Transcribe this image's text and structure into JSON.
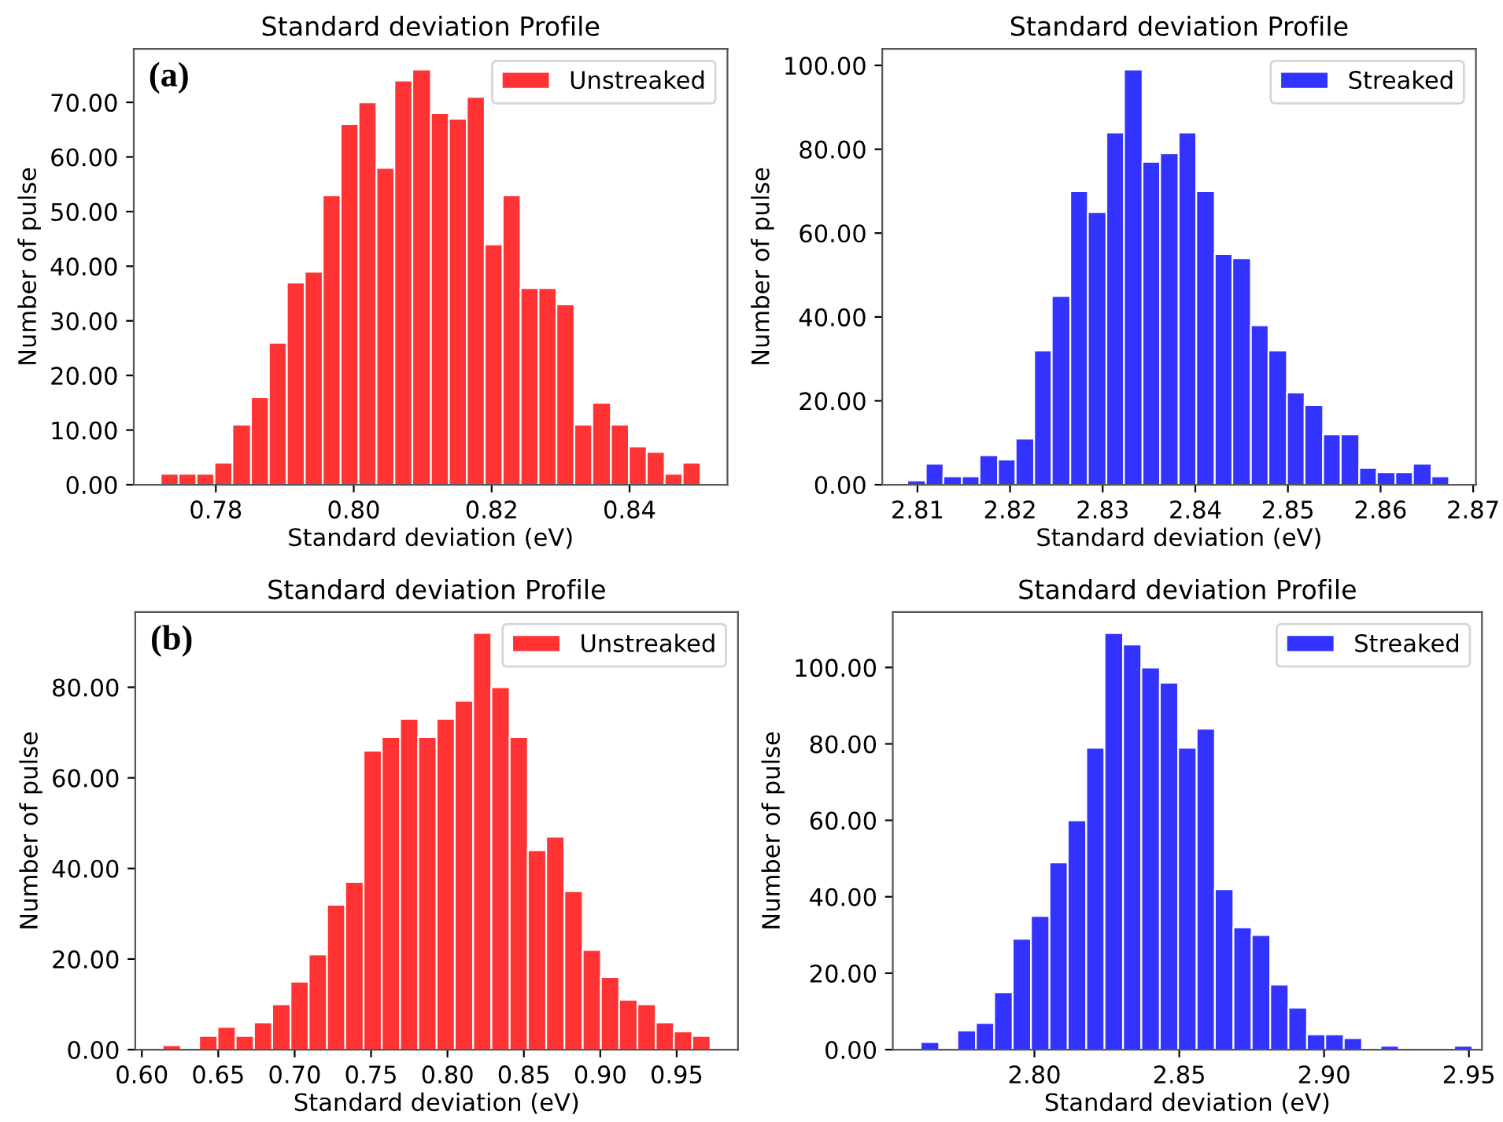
{
  "chart_data": [
    {
      "type": "histogram",
      "title": "Standard deviation Profile",
      "xlabel": "Standard deviation (eV)",
      "ylabel": "Number of pulse",
      "annotations": [
        "(a)"
      ],
      "legend": "top right",
      "bins": [
        0.772,
        0.7746,
        0.7772,
        0.7798,
        0.7824,
        0.7851,
        0.7877,
        0.7903,
        0.7929,
        0.7955,
        0.7981,
        0.8007,
        0.8033,
        0.8059,
        0.8085,
        0.8112,
        0.8138,
        0.8164,
        0.819,
        0.8216,
        0.8242,
        0.8268,
        0.8294,
        0.832,
        0.8346,
        0.8373,
        0.8399,
        0.8425,
        0.8451,
        0.8477,
        0.8503
      ],
      "series": [
        {
          "name": "Unstreaked",
          "color": "#ff3333",
          "values": [
            2,
            2,
            2,
            4,
            11,
            16,
            26,
            37,
            39,
            53,
            66,
            70,
            58,
            74,
            76,
            68,
            67,
            71,
            44,
            53,
            36,
            36,
            33,
            11,
            15,
            11,
            7,
            6,
            2,
            4
          ]
        }
      ],
      "xlim": [
        0.7681,
        0.8542
      ],
      "xticks": [
        {
          "value": 0.78,
          "label": "0.78"
        },
        {
          "value": 0.8,
          "label": "0.80"
        },
        {
          "value": 0.82,
          "label": "0.82"
        },
        {
          "value": 0.84,
          "label": "0.84"
        }
      ],
      "ylim": [
        0,
        79.8
      ],
      "yticks": [
        {
          "value": 0,
          "label": "0.00"
        },
        {
          "value": 10,
          "label": "10.00"
        },
        {
          "value": 20,
          "label": "20.00"
        },
        {
          "value": 30,
          "label": "30.00"
        },
        {
          "value": 40,
          "label": "40.00"
        },
        {
          "value": 50,
          "label": "50.00"
        },
        {
          "value": 60,
          "label": "60.00"
        },
        {
          "value": 70,
          "label": "70.00"
        }
      ]
    },
    {
      "type": "histogram",
      "title": "Standard deviation Profile",
      "xlabel": "Standard deviation (eV)",
      "ylabel": "Number of pulse",
      "legend": "top right",
      "bins": [
        2.8089,
        2.8109,
        2.8128,
        2.8148,
        2.8167,
        2.8187,
        2.8206,
        2.8226,
        2.8245,
        2.8265,
        2.8284,
        2.8304,
        2.8323,
        2.8343,
        2.8362,
        2.8382,
        2.8401,
        2.8421,
        2.844,
        2.846,
        2.8479,
        2.8499,
        2.8518,
        2.8538,
        2.8557,
        2.8577,
        2.8596,
        2.8616,
        2.8635,
        2.8655,
        2.8674
      ],
      "series": [
        {
          "name": "Streaked",
          "color": "#3333ff",
          "values": [
            1,
            5,
            2,
            2,
            7,
            6,
            11,
            32,
            45,
            70,
            65,
            84,
            99,
            77,
            79,
            84,
            70,
            55,
            54,
            38,
            32,
            22,
            19,
            12,
            12,
            4,
            3,
            3,
            5,
            2
          ]
        }
      ],
      "xlim": [
        2.8062,
        2.8703
      ],
      "xticks": [
        {
          "value": 2.81,
          "label": "2.81"
        },
        {
          "value": 2.82,
          "label": "2.82"
        },
        {
          "value": 2.83,
          "label": "2.83"
        },
        {
          "value": 2.84,
          "label": "2.84"
        },
        {
          "value": 2.85,
          "label": "2.85"
        },
        {
          "value": 2.86,
          "label": "2.86"
        },
        {
          "value": 2.87,
          "label": "2.87"
        }
      ],
      "ylim": [
        0,
        103.95
      ],
      "yticks": [
        {
          "value": 0,
          "label": "0.00"
        },
        {
          "value": 20,
          "label": "20.00"
        },
        {
          "value": 40,
          "label": "40.00"
        },
        {
          "value": 60,
          "label": "60.00"
        },
        {
          "value": 80,
          "label": "80.00"
        },
        {
          "value": 100,
          "label": "100.00"
        }
      ]
    },
    {
      "type": "histogram",
      "title": "Standard deviation Profile",
      "xlabel": "Standard deviation (eV)",
      "ylabel": "Number of pulse",
      "annotations": [
        "(b)"
      ],
      "legend": "top right",
      "bins": [
        0.6136,
        0.6256,
        0.6375,
        0.6495,
        0.6614,
        0.6734,
        0.6853,
        0.6973,
        0.7092,
        0.7212,
        0.7331,
        0.7451,
        0.757,
        0.769,
        0.7809,
        0.7929,
        0.8048,
        0.8168,
        0.8287,
        0.8407,
        0.8526,
        0.8646,
        0.8765,
        0.8885,
        0.9004,
        0.9124,
        0.9243,
        0.9363,
        0.9482,
        0.9602,
        0.9721
      ],
      "series": [
        {
          "name": "Unstreaked",
          "color": "#ff3333",
          "values": [
            1,
            0,
            3,
            5,
            3,
            6,
            10,
            15,
            21,
            32,
            37,
            66,
            69,
            73,
            69,
            73,
            77,
            92,
            80,
            69,
            44,
            47,
            35,
            22,
            16,
            11,
            10,
            6,
            4,
            3
          ]
        }
      ],
      "xlim": [
        0.5957,
        0.9901
      ],
      "xticks": [
        {
          "value": 0.6,
          "label": "0.60"
        },
        {
          "value": 0.65,
          "label": "0.65"
        },
        {
          "value": 0.7,
          "label": "0.70"
        },
        {
          "value": 0.75,
          "label": "0.75"
        },
        {
          "value": 0.8,
          "label": "0.80"
        },
        {
          "value": 0.85,
          "label": "0.85"
        },
        {
          "value": 0.9,
          "label": "0.90"
        },
        {
          "value": 0.95,
          "label": "0.95"
        }
      ],
      "ylim": [
        0,
        96.6
      ],
      "yticks": [
        {
          "value": 0,
          "label": "0.00"
        },
        {
          "value": 20,
          "label": "20.00"
        },
        {
          "value": 40,
          "label": "40.00"
        },
        {
          "value": 60,
          "label": "60.00"
        },
        {
          "value": 80,
          "label": "80.00"
        }
      ]
    },
    {
      "type": "histogram",
      "title": "Standard deviation Profile",
      "xlabel": "Standard deviation (eV)",
      "ylabel": "Number of pulse",
      "legend": "top right",
      "bins": [
        2.7607,
        2.7671,
        2.7734,
        2.7798,
        2.7861,
        2.7925,
        2.7988,
        2.8052,
        2.8115,
        2.8179,
        2.8242,
        2.8306,
        2.8369,
        2.8433,
        2.8496,
        2.856,
        2.8623,
        2.8687,
        2.875,
        2.8814,
        2.8877,
        2.8941,
        2.9004,
        2.9068,
        2.9131,
        2.9195,
        2.9258,
        2.9322,
        2.9385,
        2.9449,
        2.9512
      ],
      "series": [
        {
          "name": "Streaked",
          "color": "#3333ff",
          "values": [
            2,
            0,
            5,
            7,
            15,
            29,
            35,
            49,
            60,
            79,
            109,
            106,
            100,
            96,
            79,
            84,
            42,
            32,
            30,
            17,
            11,
            4,
            4,
            3,
            0,
            1,
            0,
            0,
            0,
            1
          ]
        }
      ],
      "xlim": [
        2.7511,
        2.9545
      ],
      "xticks": [
        {
          "value": 2.8,
          "label": "2.80"
        },
        {
          "value": 2.85,
          "label": "2.85"
        },
        {
          "value": 2.9,
          "label": "2.90"
        },
        {
          "value": 2.95,
          "label": "2.95"
        }
      ],
      "ylim": [
        0,
        114.5
      ],
      "yticks": [
        {
          "value": 0,
          "label": "0.00"
        },
        {
          "value": 20,
          "label": "20.00"
        },
        {
          "value": 40,
          "label": "40.00"
        },
        {
          "value": 60,
          "label": "60.00"
        },
        {
          "value": 80,
          "label": "80.00"
        },
        {
          "value": 100,
          "label": "100.00"
        }
      ]
    }
  ]
}
